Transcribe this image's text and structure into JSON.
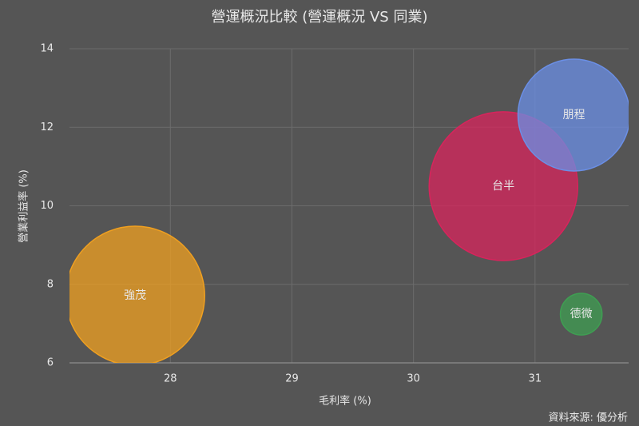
{
  "chart_data": {
    "type": "bubble",
    "title": "營運概況比較 (營運概況 VS 同業)",
    "x_label": "毛利率 (%)",
    "y_label": "營業利益率 (%)",
    "source": "資料來源: 優分析",
    "xlim": [
      27.17,
      31.77
    ],
    "ylim": [
      6,
      14
    ],
    "xticks": [
      28,
      29,
      30,
      31
    ],
    "yticks": [
      6,
      8,
      10,
      12,
      14
    ],
    "grid": true,
    "series": [
      {
        "name": "強茂",
        "color": "#f0a020",
        "x": [
          27.71
        ],
        "values": [
          7.71
        ],
        "sizes": [
          75.7
        ]
      },
      {
        "name": "台半",
        "color": "#d8245c",
        "x": [
          30.74
        ],
        "values": [
          10.5
        ],
        "sizes": [
          86.5
        ]
      },
      {
        "name": "朋程",
        "color": "#6b8fe6",
        "x": [
          31.32
        ],
        "values": [
          12.31
        ],
        "sizes": [
          49
        ]
      },
      {
        "name": "德微",
        "color": "#3f9e52",
        "x": [
          31.38
        ],
        "values": [
          7.24
        ],
        "sizes": [
          6.8
        ]
      }
    ]
  }
}
